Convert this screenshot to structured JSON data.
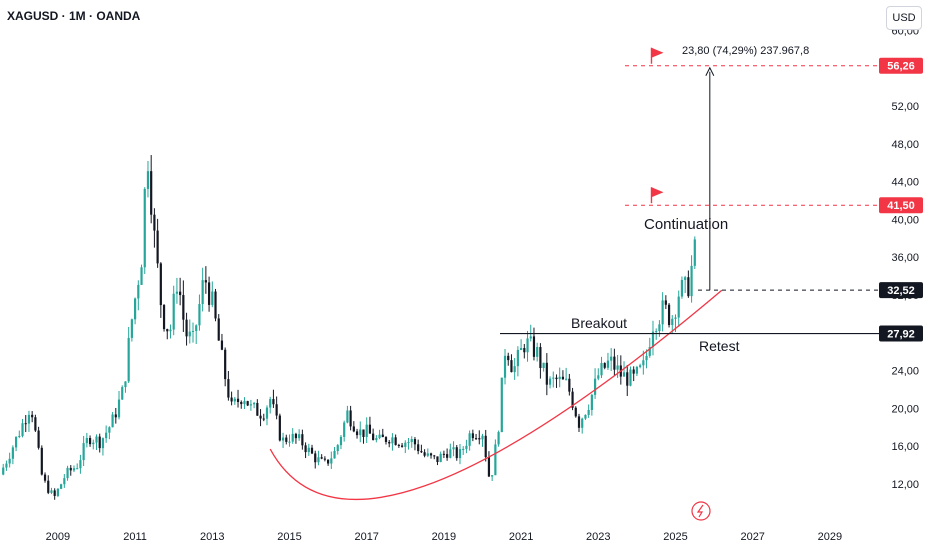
{
  "header": {
    "title": "XAGUSD · 1M · OANDA",
    "currency_button": "USD"
  },
  "colors": {
    "up": "#26a69a",
    "down": "#131722",
    "accent": "#f23645",
    "line": "#131722",
    "arc": "#f23645",
    "arrow": "#131722",
    "axis_text": "#131722",
    "badge_dark": "#131722"
  },
  "chart_data": {
    "type": "candlestick",
    "title": "",
    "y_axis_side": "right",
    "ylim": [
      9.5,
      61
    ],
    "xlim": [
      2007.5,
      2030.0
    ],
    "y_ticks": [
      "12,00",
      "16,00",
      "20,00",
      "24,00",
      "28,00",
      "32,00",
      "36,00",
      "40,00",
      "44,00",
      "48,00",
      "52,00",
      "56,00",
      "60,00"
    ],
    "x_ticks": [
      "2009",
      "2011",
      "2013",
      "2015",
      "2017",
      "2019",
      "2021",
      "2023",
      "2025",
      "2027",
      "2029"
    ],
    "series": [
      {
        "kind": "candles",
        "points": [
          [
            2007.5,
            13.0
          ],
          [
            2008.0,
            17.5
          ],
          [
            2008.3,
            20.5
          ],
          [
            2008.6,
            12.5
          ],
          [
            2008.9,
            10.5
          ],
          [
            2009.2,
            13.0
          ],
          [
            2009.5,
            14.0
          ],
          [
            2009.8,
            17.0
          ],
          [
            2010.1,
            16.5
          ],
          [
            2010.4,
            18.5
          ],
          [
            2010.7,
            22.0
          ],
          [
            2010.9,
            29.0
          ],
          [
            2011.2,
            37.0
          ],
          [
            2011.3,
            48.5
          ],
          [
            2011.5,
            38.0
          ],
          [
            2011.7,
            30.0
          ],
          [
            2011.9,
            28.0
          ],
          [
            2012.1,
            34.0
          ],
          [
            2012.3,
            28.0
          ],
          [
            2012.5,
            27.0
          ],
          [
            2012.8,
            34.0
          ],
          [
            2013.0,
            31.0
          ],
          [
            2013.3,
            24.0
          ],
          [
            2013.5,
            20.0
          ],
          [
            2013.8,
            21.5
          ],
          [
            2014.0,
            20.0
          ],
          [
            2014.3,
            19.5
          ],
          [
            2014.5,
            21.0
          ],
          [
            2014.8,
            16.5
          ],
          [
            2015.0,
            17.0
          ],
          [
            2015.3,
            16.5
          ],
          [
            2015.6,
            15.0
          ],
          [
            2015.9,
            14.0
          ],
          [
            2016.2,
            15.5
          ],
          [
            2016.5,
            19.5
          ],
          [
            2016.8,
            17.5
          ],
          [
            2017.0,
            17.5
          ],
          [
            2017.3,
            16.5
          ],
          [
            2017.6,
            17.0
          ],
          [
            2017.9,
            16.5
          ],
          [
            2018.2,
            16.5
          ],
          [
            2018.5,
            15.0
          ],
          [
            2018.8,
            14.5
          ],
          [
            2019.1,
            15.5
          ],
          [
            2019.4,
            15.0
          ],
          [
            2019.7,
            17.5
          ],
          [
            2020.0,
            17.5
          ],
          [
            2020.2,
            12.0
          ],
          [
            2020.4,
            17.5
          ],
          [
            2020.6,
            27.0
          ],
          [
            2020.8,
            24.0
          ],
          [
            2021.1,
            27.0
          ],
          [
            2021.4,
            26.0
          ],
          [
            2021.7,
            22.5
          ],
          [
            2021.9,
            23.0
          ],
          [
            2022.2,
            22.5
          ],
          [
            2022.5,
            18.5
          ],
          [
            2022.8,
            21.0
          ],
          [
            2023.0,
            23.5
          ],
          [
            2023.3,
            25.0
          ],
          [
            2023.6,
            23.5
          ],
          [
            2023.9,
            23.0
          ],
          [
            2024.2,
            24.5
          ],
          [
            2024.4,
            29.0
          ],
          [
            2024.7,
            30.5
          ],
          [
            2024.9,
            29.5
          ],
          [
            2025.1,
            32.5
          ],
          [
            2025.3,
            32.5
          ],
          [
            2025.5,
            36.5
          ]
        ]
      }
    ],
    "levels": [
      {
        "value": 56.26,
        "label": "56,26",
        "style": "dashed",
        "color": "#f23645"
      },
      {
        "value": 41.5,
        "label": "41,50",
        "style": "dashed",
        "color": "#f23645"
      },
      {
        "value": 32.52,
        "label": "32,52",
        "style": "dashed",
        "color": "#131722"
      },
      {
        "value": 27.92,
        "label": "27,92",
        "style": "solid",
        "color": "#131722"
      }
    ],
    "annotations": [
      {
        "text": "Continuation",
        "x": 2025.0,
        "y": 40.8
      },
      {
        "text": "Breakout",
        "x": 2022.7,
        "y": 29.0
      },
      {
        "text": "Retest",
        "x": 2026.2,
        "y": 26.5
      },
      {
        "text": "23,80 (74,29%) 237.967,8",
        "x": 2025.6,
        "y": 58.3
      }
    ],
    "projection_arrow": {
      "x": 2026.2,
      "from": 32.5,
      "to": 56.26
    },
    "flags": [
      {
        "x": 2024.3,
        "y": 56.26
      },
      {
        "x": 2024.3,
        "y": 41.5
      }
    ],
    "arc": {
      "from": [
        2014.5,
        15.7
      ],
      "mid": [
        2018.5,
        11.8
      ],
      "to": [
        2026.2,
        32.5
      ]
    }
  }
}
